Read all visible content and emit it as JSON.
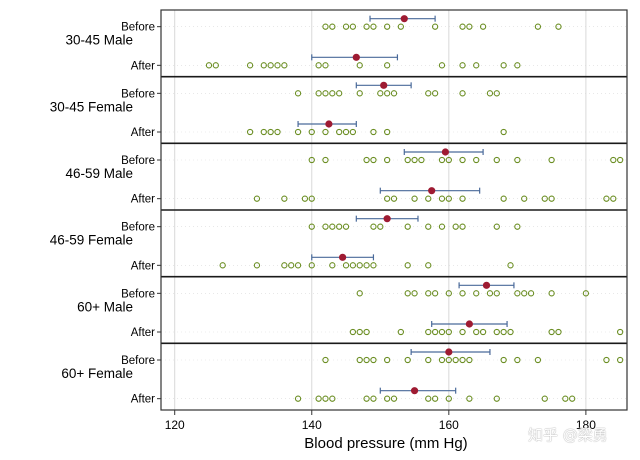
{
  "chart_data": {
    "type": "scatter",
    "xlabel": "Blood pressure (mm Hg)",
    "xlim": [
      118,
      186
    ],
    "xticks": [
      120,
      140,
      160,
      180
    ],
    "colors": {
      "point_stroke": "#6b8e23",
      "mean_fill": "#9e1b32",
      "ci_line": "#4a6a9a",
      "separator": "#1a1a1a",
      "grid": "#d9d9d9",
      "frame": "#333333"
    },
    "groups": [
      {
        "label": "30-45 Male",
        "rows": [
          {
            "label": "Before",
            "mean": 153.5,
            "ci": [
              148.5,
              158.0
            ],
            "points": [
              142,
              143,
              145,
              146,
              148,
              149,
              151,
              153,
              158,
              162,
              163,
              165,
              173,
              176
            ]
          },
          {
            "label": "After",
            "mean": 146.5,
            "ci": [
              140.0,
              152.5
            ],
            "points": [
              125,
              126,
              131,
              133,
              134,
              135,
              136,
              141,
              142,
              147,
              151,
              159,
              162,
              164,
              168,
              170
            ]
          }
        ]
      },
      {
        "label": "30-45 Female",
        "rows": [
          {
            "label": "Before",
            "mean": 150.5,
            "ci": [
              146.5,
              154.5
            ],
            "points": [
              138,
              141,
              142,
              143,
              144,
              147,
              150,
              151,
              152,
              157,
              158,
              162,
              166,
              167
            ]
          },
          {
            "label": "After",
            "mean": 142.5,
            "ci": [
              138.0,
              146.5
            ],
            "points": [
              131,
              133,
              134,
              135,
              138,
              140,
              142,
              144,
              145,
              146,
              149,
              151,
              168
            ]
          }
        ]
      },
      {
        "label": "46-59 Male",
        "rows": [
          {
            "label": "Before",
            "mean": 159.5,
            "ci": [
              153.5,
              165.0
            ],
            "points": [
              140,
              142,
              148,
              149,
              151,
              154,
              155,
              156,
              159,
              160,
              162,
              164,
              167,
              170,
              175,
              184,
              185
            ]
          },
          {
            "label": "After",
            "mean": 157.5,
            "ci": [
              150.0,
              164.5
            ],
            "points": [
              132,
              136,
              139,
              140,
              151,
              152,
              155,
              157,
              159,
              160,
              162,
              168,
              171,
              174,
              175,
              183,
              184
            ]
          }
        ]
      },
      {
        "label": "46-59 Female",
        "rows": [
          {
            "label": "Before",
            "mean": 151.0,
            "ci": [
              146.5,
              155.5
            ],
            "points": [
              140,
              142,
              143,
              144,
              145,
              149,
              150,
              154,
              157,
              159,
              161,
              162,
              167,
              170
            ]
          },
          {
            "label": "After",
            "mean": 144.5,
            "ci": [
              140.0,
              149.0
            ],
            "points": [
              127,
              132,
              136,
              137,
              138,
              140,
              143,
              145,
              146,
              147,
              148,
              149,
              154,
              157,
              169
            ]
          }
        ]
      },
      {
        "label": "60+ Male",
        "rows": [
          {
            "label": "Before",
            "mean": 165.5,
            "ci": [
              161.5,
              169.5
            ],
            "points": [
              147,
              154,
              155,
              157,
              158,
              160,
              162,
              164,
              166,
              167,
              170,
              171,
              172,
              175,
              180
            ]
          },
          {
            "label": "After",
            "mean": 163.0,
            "ci": [
              157.5,
              168.5
            ],
            "points": [
              146,
              147,
              148,
              153,
              157,
              158,
              159,
              160,
              162,
              164,
              165,
              167,
              168,
              169,
              175,
              176,
              185
            ]
          }
        ]
      },
      {
        "label": "60+ Female",
        "rows": [
          {
            "label": "Before",
            "mean": 160.0,
            "ci": [
              154.5,
              166.0
            ],
            "points": [
              142,
              147,
              148,
              149,
              151,
              154,
              157,
              159,
              160,
              161,
              162,
              163,
              168,
              170,
              173,
              183,
              185
            ]
          },
          {
            "label": "After",
            "mean": 155.0,
            "ci": [
              150.0,
              161.0
            ],
            "points": [
              138,
              141,
              142,
              143,
              148,
              149,
              151,
              152,
              157,
              158,
              160,
              163,
              167,
              174,
              177,
              178
            ]
          }
        ]
      }
    ]
  },
  "watermark": "知乎 @梁勇"
}
